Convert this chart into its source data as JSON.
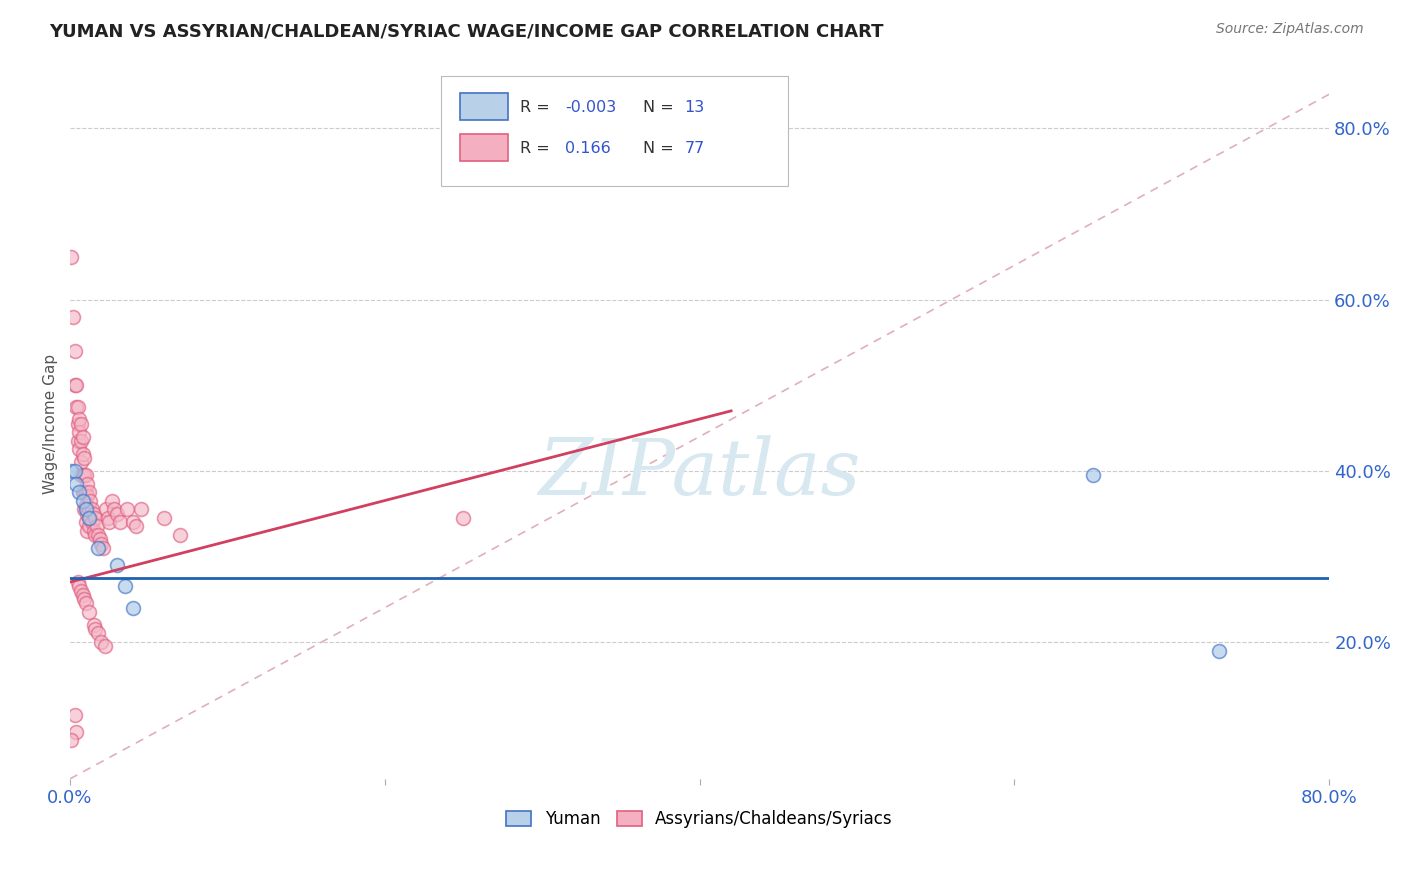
{
  "title": "YUMAN VS ASSYRIAN/CHALDEAN/SYRIAC WAGE/INCOME GAP CORRELATION CHART",
  "source": "Source: ZipAtlas.com",
  "ylabel": "Wage/Income Gap",
  "xlim": [
    0.0,
    0.8
  ],
  "ylim": [
    0.04,
    0.87
  ],
  "ytick_labels_right": [
    "80.0%",
    "60.0%",
    "40.0%",
    "20.0%"
  ],
  "ytick_positions_right": [
    0.8,
    0.6,
    0.4,
    0.2
  ],
  "grid_color": "#cccccc",
  "background_color": "#ffffff",
  "blue_scatter_color": "#a8c8e8",
  "blue_edge_color": "#4472C4",
  "pink_scatter_color": "#f4b8c8",
  "pink_edge_color": "#e06080",
  "blue_line_color": "#2060b0",
  "pink_line_color": "#d04060",
  "diag_line_color": "#e0b0b8",
  "blue_scatter": [
    [
      0.001,
      0.4
    ],
    [
      0.003,
      0.4
    ],
    [
      0.004,
      0.385
    ],
    [
      0.006,
      0.375
    ],
    [
      0.008,
      0.365
    ],
    [
      0.01,
      0.355
    ],
    [
      0.012,
      0.345
    ],
    [
      0.018,
      0.31
    ],
    [
      0.03,
      0.29
    ],
    [
      0.035,
      0.265
    ],
    [
      0.04,
      0.24
    ],
    [
      0.65,
      0.395
    ],
    [
      0.73,
      0.19
    ]
  ],
  "pink_scatter": [
    [
      0.001,
      0.65
    ],
    [
      0.002,
      0.58
    ],
    [
      0.003,
      0.54
    ],
    [
      0.003,
      0.5
    ],
    [
      0.004,
      0.5
    ],
    [
      0.004,
      0.475
    ],
    [
      0.005,
      0.475
    ],
    [
      0.005,
      0.455
    ],
    [
      0.005,
      0.435
    ],
    [
      0.006,
      0.46
    ],
    [
      0.006,
      0.445
    ],
    [
      0.006,
      0.425
    ],
    [
      0.007,
      0.455
    ],
    [
      0.007,
      0.435
    ],
    [
      0.007,
      0.41
    ],
    [
      0.007,
      0.395
    ],
    [
      0.008,
      0.44
    ],
    [
      0.008,
      0.42
    ],
    [
      0.008,
      0.395
    ],
    [
      0.008,
      0.375
    ],
    [
      0.009,
      0.415
    ],
    [
      0.009,
      0.395
    ],
    [
      0.009,
      0.375
    ],
    [
      0.009,
      0.355
    ],
    [
      0.01,
      0.395
    ],
    [
      0.01,
      0.375
    ],
    [
      0.01,
      0.36
    ],
    [
      0.01,
      0.34
    ],
    [
      0.011,
      0.385
    ],
    [
      0.011,
      0.37
    ],
    [
      0.011,
      0.35
    ],
    [
      0.011,
      0.33
    ],
    [
      0.012,
      0.375
    ],
    [
      0.012,
      0.355
    ],
    [
      0.012,
      0.335
    ],
    [
      0.013,
      0.365
    ],
    [
      0.013,
      0.345
    ],
    [
      0.014,
      0.355
    ],
    [
      0.014,
      0.34
    ],
    [
      0.015,
      0.35
    ],
    [
      0.015,
      0.33
    ],
    [
      0.016,
      0.345
    ],
    [
      0.016,
      0.325
    ],
    [
      0.017,
      0.335
    ],
    [
      0.018,
      0.325
    ],
    [
      0.019,
      0.32
    ],
    [
      0.02,
      0.315
    ],
    [
      0.021,
      0.31
    ],
    [
      0.023,
      0.355
    ],
    [
      0.024,
      0.345
    ],
    [
      0.025,
      0.34
    ],
    [
      0.027,
      0.365
    ],
    [
      0.028,
      0.355
    ],
    [
      0.03,
      0.35
    ],
    [
      0.032,
      0.34
    ],
    [
      0.036,
      0.355
    ],
    [
      0.04,
      0.34
    ],
    [
      0.042,
      0.335
    ],
    [
      0.045,
      0.355
    ],
    [
      0.06,
      0.345
    ],
    [
      0.07,
      0.325
    ],
    [
      0.005,
      0.27
    ],
    [
      0.006,
      0.265
    ],
    [
      0.007,
      0.26
    ],
    [
      0.008,
      0.255
    ],
    [
      0.009,
      0.25
    ],
    [
      0.01,
      0.245
    ],
    [
      0.012,
      0.235
    ],
    [
      0.015,
      0.22
    ],
    [
      0.016,
      0.215
    ],
    [
      0.018,
      0.21
    ],
    [
      0.02,
      0.2
    ],
    [
      0.022,
      0.195
    ],
    [
      0.003,
      0.115
    ],
    [
      0.004,
      0.095
    ],
    [
      0.001,
      0.085
    ],
    [
      0.25,
      0.345
    ]
  ],
  "watermark_text": "ZIPatlas",
  "watermark_color": "#d8e8f0",
  "marker_size": 100,
  "marker_alpha": 0.65,
  "marker_linewidth": 1.2
}
